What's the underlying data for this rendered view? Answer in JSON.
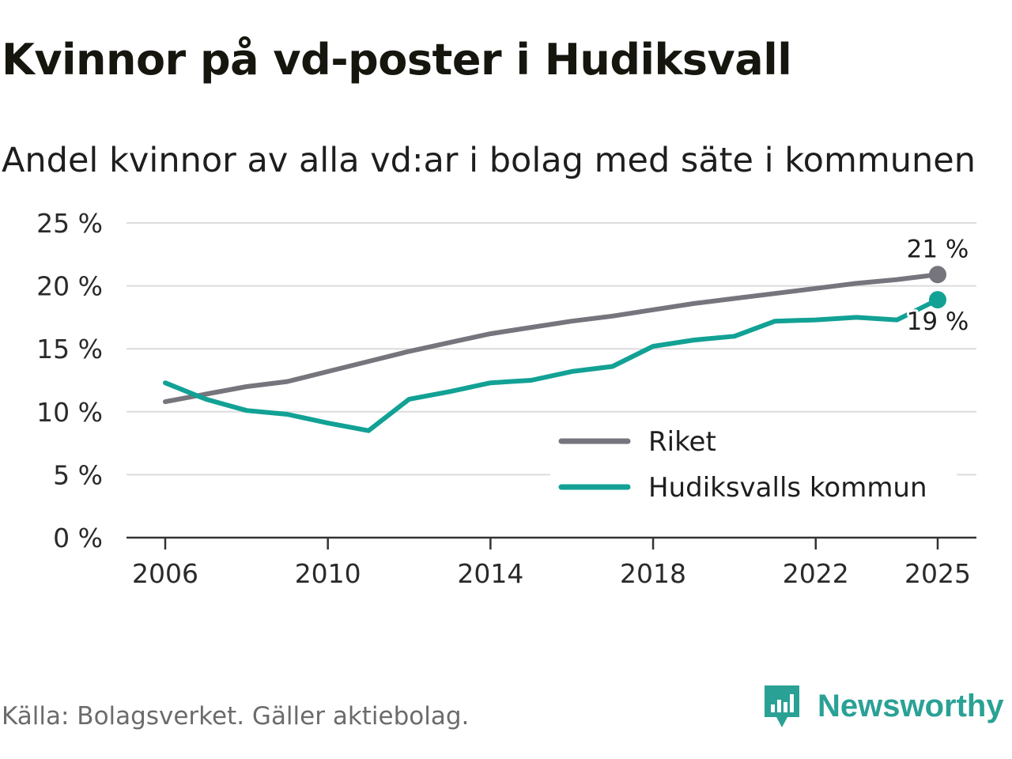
{
  "title": "Kvinnor på vd-poster i Hudiksvall",
  "subtitle": "Andel kvinnor av alla vd:ar i bolag med säte i kommunen",
  "source": "Källa: Bolagsverket. Gäller aktiebolag.",
  "brand": {
    "name": "Newsworthy",
    "icon": "newsworthy-logo-icon",
    "color": "#2aa195"
  },
  "chart_data": {
    "type": "line",
    "title": "Kvinnor på vd-poster i Hudiksvall",
    "subtitle": "Andel kvinnor av alla vd:ar i bolag med säte i kommunen",
    "xlabel": "",
    "ylabel": "",
    "xlim": [
      2006,
      2025
    ],
    "ylim": [
      0,
      25
    ],
    "x_ticks": [
      2006,
      2010,
      2014,
      2018,
      2022,
      2025
    ],
    "x_tick_labels": [
      "2006",
      "2010",
      "2014",
      "2018",
      "2022",
      "2025"
    ],
    "y_ticks": [
      0,
      5,
      10,
      15,
      20,
      25
    ],
    "y_tick_labels": [
      "0 %",
      "5 %",
      "10 %",
      "15 %",
      "20 %",
      "25 %"
    ],
    "grid": true,
    "legend_position": "bottom-right",
    "x": [
      2006,
      2007,
      2008,
      2009,
      2010,
      2011,
      2012,
      2013,
      2014,
      2015,
      2016,
      2017,
      2018,
      2019,
      2020,
      2021,
      2022,
      2023,
      2024,
      2025
    ],
    "series": [
      {
        "name": "Riket",
        "color": "#76757d",
        "values": [
          10.8,
          11.4,
          12.0,
          12.4,
          13.2,
          14.0,
          14.8,
          15.5,
          16.2,
          16.7,
          17.2,
          17.6,
          18.1,
          18.6,
          19.0,
          19.4,
          19.8,
          20.2,
          20.5,
          20.9
        ],
        "end_label": "21 %"
      },
      {
        "name": "Hudiksvalls kommun",
        "color": "#12a195",
        "values": [
          12.3,
          11.0,
          10.1,
          9.8,
          9.1,
          8.5,
          11.0,
          11.6,
          12.3,
          12.5,
          13.2,
          13.6,
          15.2,
          15.7,
          16.0,
          17.2,
          17.3,
          17.5,
          17.3,
          18.9
        ],
        "end_label": "19 %"
      }
    ]
  }
}
